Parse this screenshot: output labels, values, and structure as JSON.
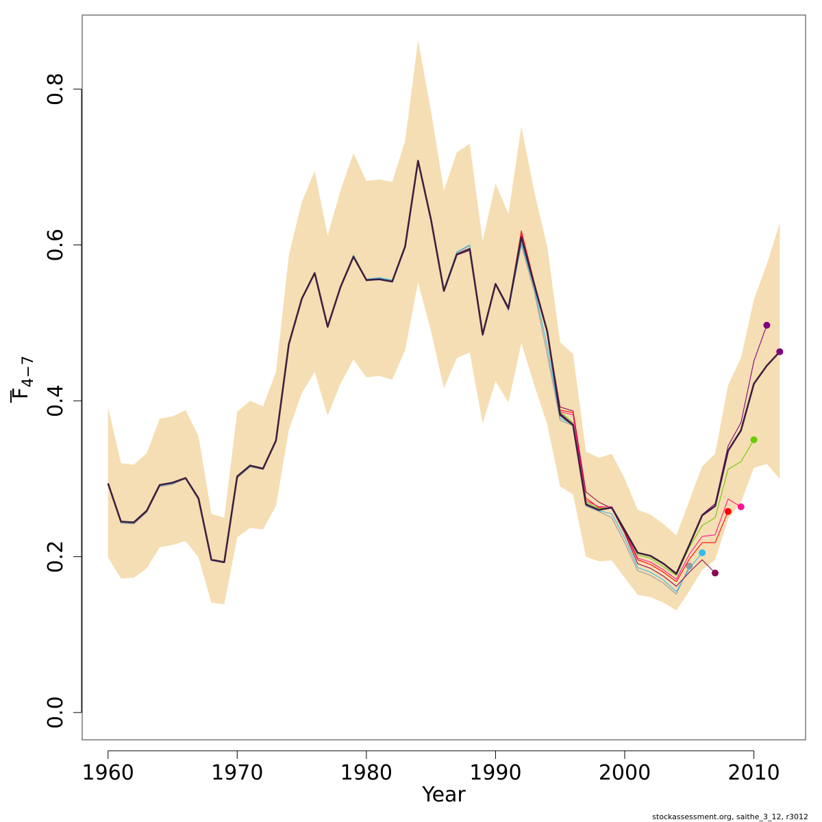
{
  "chart_data": {
    "type": "line",
    "title": "",
    "xlabel": "Year",
    "ylabel_main": "F",
    "ylabel_sub": "4−7",
    "xlim": [
      1958,
      2014
    ],
    "ylim": [
      -0.035,
      0.895
    ],
    "x_ticks": [
      1960,
      1970,
      1980,
      1990,
      2000,
      2010
    ],
    "x_tick_labels": [
      "1960",
      "1970",
      "1980",
      "1990",
      "2000",
      "2010"
    ],
    "y_ticks": [
      0.0,
      0.2,
      0.4,
      0.6,
      0.8
    ],
    "y_tick_labels": [
      "0.0",
      "0.2",
      "0.4",
      "0.6",
      "0.8"
    ],
    "grid": false,
    "legend": "none",
    "colors": {
      "band": "#f5deb3",
      "main": "#3d1f3f",
      "r2011": "#800080",
      "r2010": "#66cc00",
      "r2009": "#ff1493",
      "r2008": "#ff0000",
      "r2007": "#8b0a50",
      "r2006": "#33bbee",
      "r2005": "#999999"
    },
    "years": [
      1960,
      1961,
      1962,
      1963,
      1964,
      1965,
      1966,
      1967,
      1968,
      1969,
      1970,
      1971,
      1972,
      1973,
      1974,
      1975,
      1976,
      1977,
      1978,
      1979,
      1980,
      1981,
      1982,
      1983,
      1984,
      1985,
      1986,
      1987,
      1988,
      1989,
      1990,
      1991,
      1992,
      1993,
      1994,
      1995,
      1996,
      1997,
      1998,
      1999,
      2000,
      2001,
      2002,
      2003,
      2004,
      2005,
      2006,
      2007,
      2008,
      2009,
      2010,
      2011,
      2012
    ],
    "upper": [
      0.392,
      0.32,
      0.318,
      0.333,
      0.377,
      0.38,
      0.388,
      0.355,
      0.255,
      0.25,
      0.386,
      0.4,
      0.393,
      0.437,
      0.587,
      0.655,
      0.695,
      0.612,
      0.67,
      0.718,
      0.682,
      0.684,
      0.681,
      0.733,
      0.863,
      0.772,
      0.67,
      0.719,
      0.73,
      0.605,
      0.679,
      0.64,
      0.752,
      0.668,
      0.598,
      0.475,
      0.46,
      0.335,
      0.327,
      0.332,
      0.3,
      0.26,
      0.254,
      0.242,
      0.227,
      0.272,
      0.316,
      0.332,
      0.42,
      0.455,
      0.53,
      0.575,
      0.628
    ],
    "lower": [
      0.199,
      0.172,
      0.173,
      0.185,
      0.212,
      0.215,
      0.22,
      0.199,
      0.141,
      0.139,
      0.225,
      0.237,
      0.235,
      0.265,
      0.363,
      0.41,
      0.437,
      0.381,
      0.422,
      0.453,
      0.43,
      0.432,
      0.427,
      0.465,
      0.552,
      0.49,
      0.416,
      0.455,
      0.462,
      0.371,
      0.425,
      0.398,
      0.474,
      0.42,
      0.37,
      0.29,
      0.28,
      0.2,
      0.194,
      0.195,
      0.173,
      0.151,
      0.148,
      0.141,
      0.131,
      0.156,
      0.183,
      0.196,
      0.248,
      0.27,
      0.314,
      0.319,
      0.3
    ],
    "series": [
      {
        "key": "r2005",
        "end_year": 2005,
        "values": [
          0.293,
          0.243,
          0.242,
          0.257,
          0.29,
          0.293,
          0.3,
          0.273,
          0.195,
          0.192,
          0.301,
          0.315,
          0.312,
          0.347,
          0.471,
          0.53,
          0.563,
          0.494,
          0.546,
          0.586,
          0.556,
          0.557,
          0.554,
          0.599,
          0.708,
          0.635,
          0.543,
          0.59,
          0.599,
          0.487,
          0.55,
          0.517,
          0.6,
          0.54,
          0.46,
          0.375,
          0.368,
          0.265,
          0.258,
          0.25,
          0.218,
          0.182,
          0.176,
          0.166,
          0.152,
          0.188
        ]
      },
      {
        "key": "r2006",
        "end_year": 2006,
        "values": [
          0.293,
          0.244,
          0.243,
          0.258,
          0.291,
          0.294,
          0.301,
          0.274,
          0.195,
          0.193,
          0.302,
          0.316,
          0.313,
          0.348,
          0.472,
          0.531,
          0.564,
          0.495,
          0.547,
          0.587,
          0.556,
          0.558,
          0.555,
          0.6,
          0.708,
          0.635,
          0.543,
          0.591,
          0.6,
          0.487,
          0.55,
          0.516,
          0.603,
          0.545,
          0.47,
          0.378,
          0.369,
          0.266,
          0.259,
          0.255,
          0.224,
          0.186,
          0.18,
          0.17,
          0.155,
          0.185,
          0.205
        ]
      },
      {
        "key": "r2007",
        "end_year": 2007,
        "values": [
          0.294,
          0.245,
          0.244,
          0.259,
          0.292,
          0.295,
          0.301,
          0.275,
          0.196,
          0.193,
          0.303,
          0.317,
          0.313,
          0.349,
          0.473,
          0.531,
          0.564,
          0.495,
          0.546,
          0.585,
          0.554,
          0.556,
          0.553,
          0.598,
          0.707,
          0.633,
          0.541,
          0.587,
          0.593,
          0.484,
          0.549,
          0.517,
          0.612,
          0.548,
          0.489,
          0.392,
          0.387,
          0.283,
          0.27,
          0.262,
          0.23,
          0.191,
          0.185,
          0.175,
          0.162,
          0.18,
          0.196,
          0.179
        ]
      },
      {
        "key": "r2008",
        "end_year": 2008,
        "values": [
          0.294,
          0.245,
          0.244,
          0.259,
          0.292,
          0.295,
          0.301,
          0.275,
          0.196,
          0.193,
          0.303,
          0.317,
          0.313,
          0.349,
          0.473,
          0.531,
          0.564,
          0.495,
          0.546,
          0.585,
          0.555,
          0.556,
          0.553,
          0.598,
          0.708,
          0.633,
          0.541,
          0.588,
          0.595,
          0.485,
          0.55,
          0.52,
          0.618,
          0.552,
          0.49,
          0.388,
          0.385,
          0.275,
          0.263,
          0.262,
          0.232,
          0.196,
          0.19,
          0.18,
          0.168,
          0.197,
          0.218,
          0.218,
          0.258
        ]
      },
      {
        "key": "r2009",
        "end_year": 2009,
        "values": [
          0.294,
          0.245,
          0.244,
          0.259,
          0.292,
          0.295,
          0.301,
          0.275,
          0.196,
          0.193,
          0.303,
          0.317,
          0.313,
          0.349,
          0.473,
          0.531,
          0.564,
          0.495,
          0.546,
          0.585,
          0.555,
          0.556,
          0.553,
          0.598,
          0.708,
          0.633,
          0.541,
          0.588,
          0.595,
          0.485,
          0.55,
          0.519,
          0.614,
          0.549,
          0.489,
          0.386,
          0.382,
          0.272,
          0.264,
          0.264,
          0.234,
          0.198,
          0.193,
          0.183,
          0.171,
          0.203,
          0.226,
          0.228,
          0.274,
          0.264
        ]
      },
      {
        "key": "r2010",
        "end_year": 2010,
        "values": [
          0.294,
          0.245,
          0.244,
          0.259,
          0.292,
          0.295,
          0.301,
          0.275,
          0.196,
          0.193,
          0.303,
          0.317,
          0.313,
          0.349,
          0.473,
          0.531,
          0.564,
          0.495,
          0.546,
          0.585,
          0.555,
          0.556,
          0.553,
          0.598,
          0.708,
          0.633,
          0.541,
          0.588,
          0.595,
          0.485,
          0.55,
          0.519,
          0.612,
          0.549,
          0.489,
          0.386,
          0.372,
          0.27,
          0.262,
          0.263,
          0.234,
          0.202,
          0.198,
          0.187,
          0.176,
          0.212,
          0.24,
          0.25,
          0.312,
          0.322,
          0.35
        ]
      },
      {
        "key": "r2011",
        "end_year": 2011,
        "values": [
          0.294,
          0.245,
          0.244,
          0.259,
          0.292,
          0.295,
          0.301,
          0.275,
          0.196,
          0.193,
          0.303,
          0.317,
          0.313,
          0.349,
          0.473,
          0.531,
          0.564,
          0.495,
          0.546,
          0.585,
          0.555,
          0.556,
          0.553,
          0.598,
          0.708,
          0.633,
          0.541,
          0.588,
          0.595,
          0.485,
          0.55,
          0.519,
          0.611,
          0.549,
          0.489,
          0.384,
          0.37,
          0.268,
          0.26,
          0.263,
          0.235,
          0.205,
          0.201,
          0.191,
          0.179,
          0.215,
          0.254,
          0.268,
          0.342,
          0.372,
          0.451,
          0.497
        ]
      },
      {
        "key": "main",
        "end_year": 2012,
        "values": [
          0.294,
          0.245,
          0.244,
          0.259,
          0.292,
          0.295,
          0.301,
          0.275,
          0.196,
          0.193,
          0.303,
          0.317,
          0.313,
          0.349,
          0.473,
          0.531,
          0.564,
          0.495,
          0.546,
          0.585,
          0.555,
          0.556,
          0.553,
          0.598,
          0.708,
          0.633,
          0.541,
          0.588,
          0.595,
          0.485,
          0.55,
          0.519,
          0.61,
          0.549,
          0.489,
          0.382,
          0.369,
          0.267,
          0.26,
          0.263,
          0.234,
          0.205,
          0.201,
          0.191,
          0.178,
          0.215,
          0.253,
          0.265,
          0.336,
          0.362,
          0.422,
          0.445,
          0.463
        ]
      }
    ],
    "footer": "stockassessment.org, saithe_3_12, r3012"
  }
}
